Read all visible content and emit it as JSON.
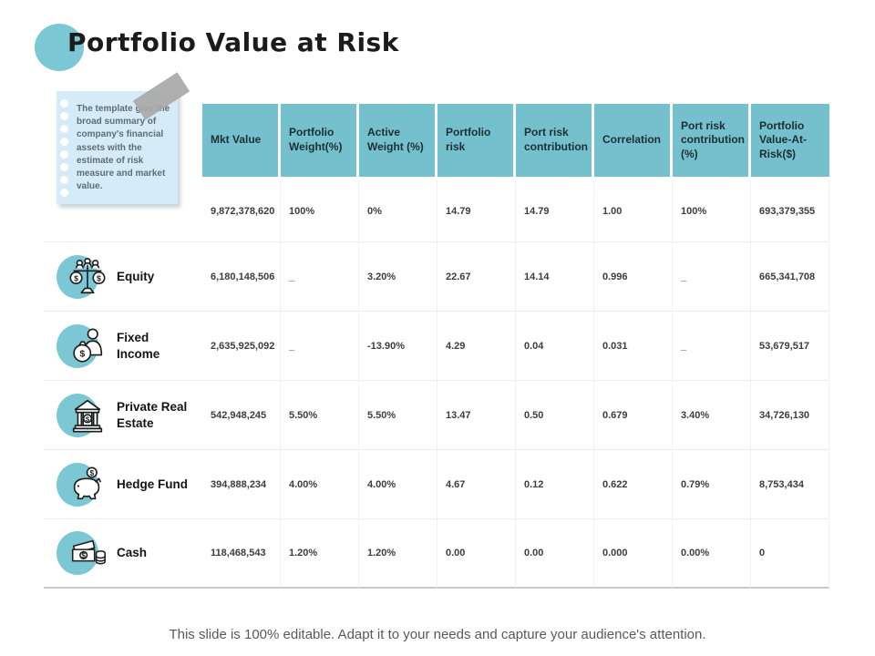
{
  "slide": {
    "title": "Portfolio Value at Risk",
    "footer": "This slide is 100% editable. Adapt it to your needs and capture your audience's attention."
  },
  "note": {
    "text": "The template give the broad summary of company's financial assets with the estimate of risk measure and market value."
  },
  "table": {
    "columns": [
      "Mkt Value",
      "Portfolio Weight(%)",
      "Active Weight (%)",
      "Portfolio risk",
      "Port risk contribution",
      "Correlation",
      "Port risk contribution (%)",
      "Portfolio Value-At-Risk($)"
    ],
    "rows": [
      {
        "label": "",
        "icon": null,
        "values": [
          "9,872,378,620",
          "100%",
          "0%",
          "14.79",
          "14.79",
          "1.00",
          "100%",
          "693,379,355"
        ]
      },
      {
        "label": "Equity",
        "icon": "balance-scale-icon",
        "values": [
          "6,180,148,506",
          "_",
          "3.20%",
          "22.67",
          "14.14",
          "0.996",
          "_",
          "665,341,708"
        ]
      },
      {
        "label": "Fixed Income",
        "icon": "person-money-bag-icon",
        "values": [
          "2,635,925,092",
          "_",
          "-13.90%",
          "4.29",
          "0.04",
          "0.031",
          "_",
          "53,679,517"
        ]
      },
      {
        "label": "Private Real Estate",
        "icon": "bank-building-icon",
        "values": [
          "542,948,245",
          "5.50%",
          "5.50%",
          "13.47",
          "0.50",
          "0.679",
          "3.40%",
          "34,726,130"
        ]
      },
      {
        "label": "Hedge Fund",
        "icon": "piggy-bank-icon",
        "values": [
          "394,888,234",
          "4.00%",
          "4.00%",
          "4.67",
          "0.12",
          "0.622",
          "0.79%",
          "8,753,434"
        ]
      },
      {
        "label": "Cash",
        "icon": "cash-notes-coins-icon",
        "values": [
          "118,468,543",
          "1.20%",
          "1.20%",
          "0.00",
          "0.00",
          "0.000",
          "0.00%",
          "0"
        ]
      }
    ]
  },
  "colors": {
    "accent_teal": "#7cc7d4",
    "header_teal": "#74c0cc",
    "note_blue": "#d5ecf8",
    "tape_gray": "#a8a8a8",
    "grid_line": "#ececec",
    "bottom_rule": "#c9c9c9",
    "value_text": "#3d3d3d",
    "footer_gray": "#595959"
  }
}
